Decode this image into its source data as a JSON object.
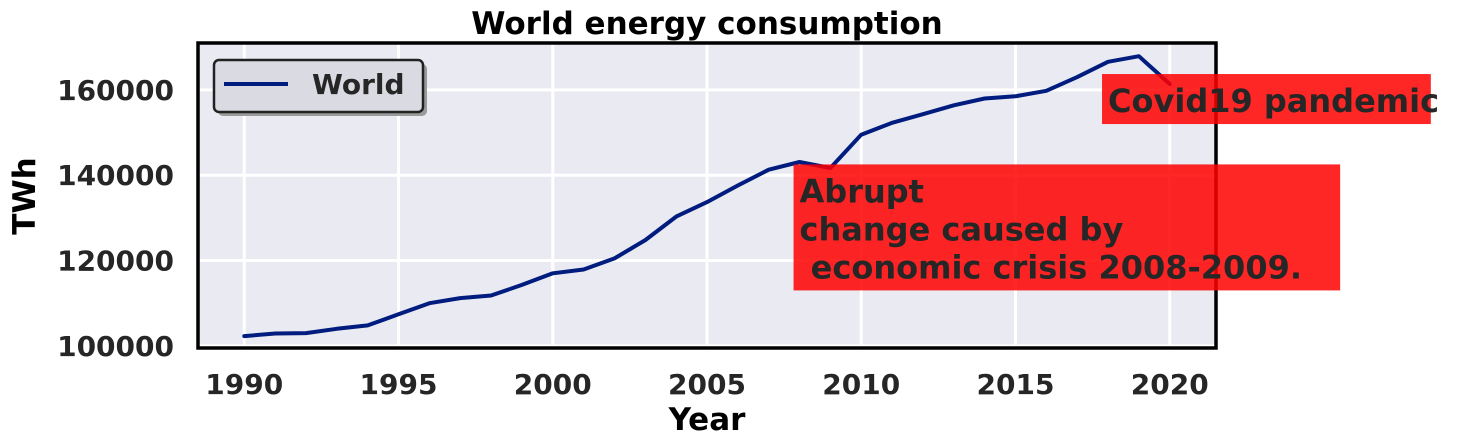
{
  "chart_data": {
    "type": "line",
    "title": "World energy consumption",
    "xlabel": "Year",
    "ylabel": "TWh",
    "xlim": [
      1988.5,
      2021.5
    ],
    "ylim": [
      99500,
      171000
    ],
    "xticks": [
      1990,
      1995,
      2000,
      2005,
      2010,
      2015,
      2020
    ],
    "yticks": [
      100000,
      120000,
      140000,
      160000
    ],
    "grid": true,
    "legend": {
      "placement": "top-left",
      "entries": [
        "World"
      ]
    },
    "series": [
      {
        "name": "World",
        "color": "#001c7f",
        "x": [
          1990,
          1991,
          1992,
          1993,
          1994,
          1995,
          1996,
          1997,
          1998,
          1999,
          2000,
          2001,
          2002,
          2003,
          2004,
          2005,
          2006,
          2007,
          2008,
          2009,
          2010,
          2011,
          2012,
          2013,
          2014,
          2015,
          2016,
          2017,
          2018,
          2019,
          2020
        ],
        "values": [
          102300,
          102900,
          103000,
          104000,
          104800,
          107400,
          110000,
          111200,
          111800,
          114300,
          117000,
          117900,
          120500,
          124800,
          130300,
          133700,
          137600,
          141300,
          143100,
          141700,
          149500,
          152300,
          154300,
          156400,
          158000,
          158500,
          159800,
          163000,
          166600,
          167900,
          161400
        ]
      }
    ],
    "annotations": [
      {
        "lines": [
          "Abrupt",
          "change caused by",
          " economic crisis 2008-2009."
        ],
        "anchor_x": 2008,
        "anchor_y": 113000,
        "box_color": "#ff0000"
      },
      {
        "lines": [
          "Covid19 pandemic"
        ],
        "anchor_x": 2018,
        "anchor_y": 152000,
        "box_color": "#ff0000"
      }
    ]
  },
  "colors": {
    "background": "#eaeaf2",
    "grid": "#ffffff",
    "series": "#001c7f",
    "annotation_box": "#ff0000"
  }
}
